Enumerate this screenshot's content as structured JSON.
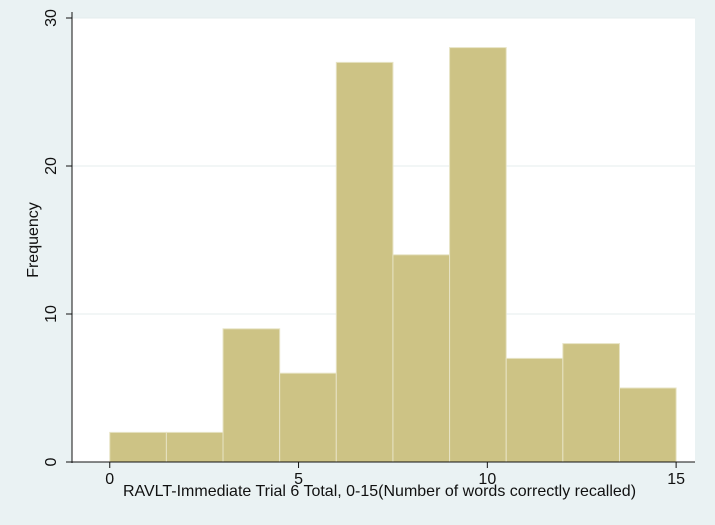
{
  "chart_data": {
    "type": "bar",
    "bin_edges": [
      0,
      1.5,
      3,
      4.5,
      6,
      7.5,
      9,
      10.5,
      12,
      13.5,
      15
    ],
    "values": [
      2,
      2,
      9,
      6,
      27,
      14,
      28,
      7,
      8,
      5
    ],
    "xlabel": "RAVLT-Immediate Trial 6 Total, 0-15(Number of words correctly recalled)",
    "ylabel": "Frequency",
    "xlim": [
      -1,
      15.5
    ],
    "ylim": [
      0,
      30
    ],
    "x_ticks": [
      "0",
      "5",
      "10",
      "15"
    ],
    "y_ticks": [
      "0",
      "10",
      "20",
      "30"
    ],
    "grid": "horizontal",
    "colors": {
      "bar_fill": "#cdc385",
      "bar_stroke": "#e7e3c4",
      "plot_background": "#ffffff",
      "page_background": "#eaf2f3",
      "grid": "#e4ecee",
      "axis": "#111111"
    }
  }
}
